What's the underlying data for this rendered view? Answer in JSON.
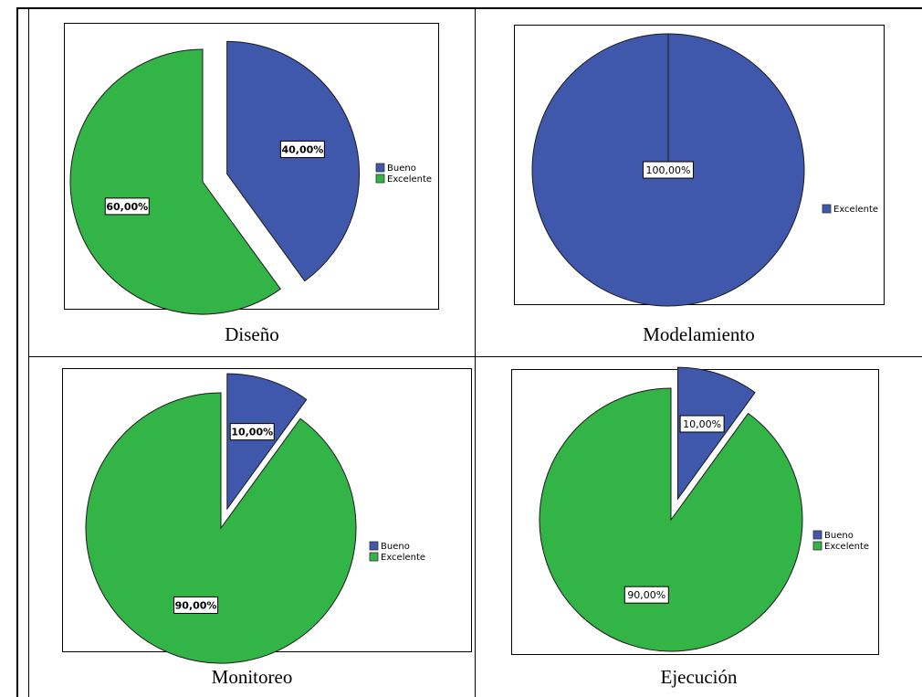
{
  "colors": {
    "bueno": "#3f58ab",
    "excelente": "#32b446"
  },
  "chart_data": [
    {
      "type": "pie",
      "caption": "Diseño",
      "slices": [
        {
          "name": "Bueno",
          "value": 40,
          "label": "40,00%",
          "color": "#3f58ab",
          "exploded": true
        },
        {
          "name": "Excelente",
          "value": 60,
          "label": "60,00%",
          "color": "#32b446",
          "exploded": false
        }
      ],
      "legend": [
        "Bueno",
        "Excelente"
      ],
      "bold_labels": true
    },
    {
      "type": "pie",
      "caption": "Modelamiento",
      "slices": [
        {
          "name": "Excelente",
          "value": 100,
          "label": "100,00%",
          "color": "#3f58ab",
          "exploded": false
        }
      ],
      "legend": [
        "Excelente"
      ],
      "bold_labels": false
    },
    {
      "type": "pie",
      "caption": "Monitoreo",
      "slices": [
        {
          "name": "Bueno",
          "value": 10,
          "label": "10,00%",
          "color": "#3f58ab",
          "exploded": true
        },
        {
          "name": "Excelente",
          "value": 90,
          "label": "90,00%",
          "color": "#32b446",
          "exploded": false
        }
      ],
      "legend": [
        "Bueno",
        "Excelente"
      ],
      "bold_labels": true
    },
    {
      "type": "pie",
      "caption": "Ejecución",
      "slices": [
        {
          "name": "Bueno",
          "value": 10,
          "label": "10,00%",
          "color": "#3f58ab",
          "exploded": true
        },
        {
          "name": "Excelente",
          "value": 90,
          "label": "90,00%",
          "color": "#32b446",
          "exploded": false
        }
      ],
      "legend": [
        "Bueno",
        "Excelente"
      ],
      "bold_labels": false
    }
  ]
}
